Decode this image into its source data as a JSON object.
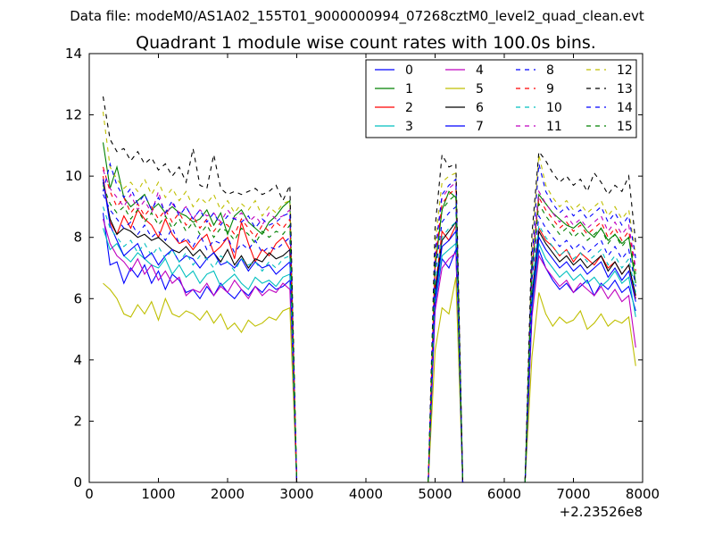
{
  "figure": {
    "suptitle": "Data file: modeM0/AS1A02_155T01_9000000994_07268cztM0_level2_quad_clean.evt"
  },
  "chart_data": {
    "type": "line",
    "title": "Quadrant 1 module wise count rates with 100.0s bins.",
    "xlabel": "",
    "ylabel": "",
    "x_offset_label": "+2.23526e8",
    "xlim": [
      0,
      8000
    ],
    "ylim": [
      0,
      14
    ],
    "xticks": [
      0,
      1000,
      2000,
      3000,
      4000,
      5000,
      6000,
      7000,
      8000
    ],
    "yticks": [
      0,
      2,
      4,
      6,
      8,
      10,
      12,
      14
    ],
    "legend_position": "top-right",
    "legend_columns": 4,
    "x": [
      200,
      300,
      400,
      500,
      600,
      700,
      800,
      900,
      1000,
      1100,
      1200,
      1300,
      1400,
      1500,
      1600,
      1700,
      1800,
      1900,
      2000,
      2100,
      2200,
      2300,
      2400,
      2500,
      2600,
      2700,
      2800,
      2900,
      3000,
      4900,
      5000,
      5100,
      5200,
      5300,
      5400,
      5500,
      6300,
      6400,
      6500,
      6600,
      6700,
      6800,
      6900,
      7000,
      7100,
      7200,
      7300,
      7400,
      7500,
      7600,
      7700,
      7800,
      7900
    ],
    "series": [
      {
        "name": "0",
        "color": "#0000ff",
        "dash": "solid",
        "values": [
          8.8,
          7.1,
          7.2,
          6.5,
          7.0,
          6.7,
          7.1,
          6.5,
          6.9,
          6.3,
          6.8,
          6.6,
          6.2,
          6.3,
          6.0,
          6.4,
          6.1,
          6.5,
          6.2,
          6.0,
          6.3,
          6.1,
          6.4,
          6.2,
          6.5,
          6.3,
          6.4,
          6.6,
          0,
          0,
          5.8,
          7.3,
          7.0,
          7.6,
          0,
          0,
          0,
          5.5,
          7.6,
          7.0,
          6.6,
          6.3,
          6.5,
          6.2,
          6.4,
          6.6,
          6.1,
          6.5,
          6.3,
          6.6,
          6.2,
          6.4,
          5.6
        ]
      },
      {
        "name": "1",
        "color": "#008000",
        "dash": "solid",
        "values": [
          11.1,
          9.6,
          10.3,
          9.3,
          9.0,
          9.2,
          9.4,
          8.9,
          9.1,
          8.8,
          9.0,
          8.8,
          8.7,
          8.5,
          8.6,
          8.9,
          8.4,
          8.8,
          8.1,
          8.7,
          8.9,
          8.5,
          8.3,
          8.1,
          8.5,
          8.7,
          9.0,
          9.2,
          0,
          0,
          7.0,
          8.9,
          9.5,
          9.3,
          0,
          0,
          0,
          6.9,
          9.4,
          9.1,
          8.8,
          8.6,
          8.4,
          8.3,
          8.5,
          8.2,
          8.0,
          8.3,
          7.9,
          8.1,
          7.8,
          8.0,
          6.5
        ]
      },
      {
        "name": "2",
        "color": "#ff0000",
        "dash": "solid",
        "values": [
          10.0,
          8.5,
          8.1,
          8.7,
          8.3,
          8.9,
          8.6,
          8.4,
          8.0,
          8.6,
          8.1,
          7.8,
          7.9,
          7.6,
          7.9,
          8.1,
          7.5,
          7.7,
          8.0,
          7.3,
          8.5,
          7.8,
          7.2,
          7.6,
          7.4,
          7.8,
          8.0,
          7.6,
          0,
          0,
          6.3,
          8.2,
          7.9,
          8.4,
          0,
          0,
          0,
          6.1,
          8.3,
          7.9,
          7.7,
          7.4,
          7.6,
          7.2,
          7.5,
          7.3,
          7.1,
          7.4,
          7.0,
          7.2,
          6.8,
          7.1,
          6.0
        ]
      },
      {
        "name": "3",
        "color": "#00bfbf",
        "dash": "solid",
        "values": [
          8.3,
          7.6,
          7.8,
          7.4,
          7.2,
          7.5,
          7.3,
          7.1,
          7.0,
          7.3,
          6.8,
          7.1,
          6.7,
          6.9,
          6.5,
          6.8,
          6.9,
          6.4,
          6.6,
          6.8,
          6.5,
          6.3,
          6.7,
          6.5,
          6.6,
          6.4,
          6.7,
          6.8,
          0,
          0,
          5.9,
          7.4,
          7.6,
          7.8,
          0,
          0,
          0,
          5.6,
          7.8,
          7.3,
          7.0,
          6.7,
          6.9,
          6.6,
          6.8,
          6.5,
          6.7,
          6.4,
          6.6,
          6.9,
          6.5,
          6.7,
          5.4
        ]
      },
      {
        "name": "4",
        "color": "#bf00bf",
        "dash": "solid",
        "values": [
          8.6,
          7.8,
          7.4,
          7.2,
          6.9,
          7.3,
          6.8,
          7.1,
          6.6,
          6.9,
          6.5,
          6.7,
          6.1,
          6.3,
          6.2,
          6.5,
          6.1,
          6.4,
          6.2,
          6.6,
          6.3,
          6.0,
          6.4,
          6.1,
          6.3,
          6.2,
          6.5,
          6.3,
          0,
          0,
          5.6,
          7.0,
          7.3,
          7.5,
          0,
          0,
          0,
          5.4,
          7.4,
          7.0,
          6.7,
          6.4,
          6.6,
          6.2,
          6.5,
          6.3,
          6.1,
          6.4,
          6.0,
          6.3,
          5.9,
          6.1,
          4.4
        ]
      },
      {
        "name": "5",
        "color": "#bfbf00",
        "dash": "solid",
        "values": [
          6.5,
          6.3,
          6.0,
          5.5,
          5.4,
          5.8,
          5.5,
          5.9,
          5.3,
          6.0,
          5.5,
          5.4,
          5.6,
          5.5,
          5.3,
          5.6,
          5.2,
          5.5,
          5.0,
          5.2,
          4.9,
          5.3,
          5.1,
          5.2,
          5.4,
          5.3,
          5.6,
          5.7,
          0,
          0,
          4.3,
          5.7,
          5.5,
          6.7,
          0,
          0,
          0,
          4.1,
          6.2,
          5.5,
          5.1,
          5.4,
          5.2,
          5.3,
          5.6,
          5.0,
          5.2,
          5.5,
          5.1,
          5.3,
          5.2,
          5.4,
          3.8
        ]
      },
      {
        "name": "6",
        "color": "#000000",
        "dash": "solid",
        "values": [
          9.8,
          8.6,
          8.1,
          8.3,
          8.2,
          8.0,
          8.1,
          7.9,
          8.0,
          7.8,
          7.6,
          7.5,
          7.7,
          7.4,
          7.6,
          7.3,
          7.5,
          7.2,
          7.6,
          7.1,
          7.4,
          7.0,
          7.3,
          7.2,
          7.5,
          7.3,
          7.4,
          7.6,
          0,
          0,
          6.2,
          7.9,
          8.2,
          8.5,
          0,
          0,
          0,
          6.0,
          8.2,
          7.8,
          7.5,
          7.2,
          7.4,
          7.1,
          7.3,
          7.0,
          7.2,
          7.4,
          6.9,
          7.2,
          6.8,
          7.1,
          6.1
        ]
      },
      {
        "name": "7",
        "color": "#0000ff",
        "dash": "solid",
        "values": [
          9.9,
          8.4,
          7.9,
          7.4,
          7.6,
          7.8,
          7.3,
          7.5,
          7.1,
          7.4,
          7.6,
          7.2,
          7.4,
          7.3,
          7.0,
          7.3,
          7.5,
          7.1,
          7.2,
          7.0,
          7.3,
          6.9,
          7.2,
          7.0,
          7.1,
          6.8,
          7.0,
          7.2,
          0,
          0,
          6.0,
          7.7,
          7.9,
          8.2,
          0,
          0,
          0,
          5.8,
          8.0,
          7.6,
          7.3,
          7.0,
          7.2,
          6.9,
          7.1,
          6.8,
          7.0,
          7.2,
          6.7,
          7.0,
          6.6,
          6.9,
          5.9
        ]
      },
      {
        "name": "8",
        "color": "#0000ff",
        "dash": "dashed",
        "values": [
          9.4,
          8.9,
          8.6,
          8.3,
          8.5,
          8.1,
          8.4,
          8.0,
          8.2,
          7.9,
          8.3,
          7.8,
          8.0,
          7.7,
          8.1,
          7.6,
          7.9,
          7.8,
          8.0,
          7.5,
          7.8,
          7.6,
          7.9,
          7.5,
          7.7,
          7.6,
          7.8,
          8.0,
          0,
          0,
          6.8,
          8.5,
          8.8,
          9.0,
          0,
          0,
          0,
          6.6,
          8.7,
          8.3,
          8.0,
          7.7,
          7.9,
          7.6,
          7.8,
          7.5,
          7.7,
          7.9,
          7.4,
          7.7,
          7.3,
          7.6,
          6.4
        ]
      },
      {
        "name": "9",
        "color": "#ff0000",
        "dash": "dashed",
        "values": [
          10.3,
          9.5,
          9.0,
          9.3,
          8.8,
          9.1,
          8.7,
          9.0,
          8.6,
          8.9,
          8.5,
          8.8,
          8.4,
          8.7,
          8.3,
          8.6,
          8.2,
          8.5,
          8.4,
          8.1,
          8.6,
          8.3,
          8.0,
          8.4,
          8.2,
          8.5,
          8.3,
          8.6,
          0,
          0,
          7.2,
          9.1,
          9.4,
          9.6,
          0,
          0,
          0,
          7.0,
          9.3,
          8.9,
          8.6,
          8.3,
          8.5,
          8.2,
          8.4,
          8.1,
          8.3,
          8.5,
          8.0,
          8.3,
          7.9,
          8.2,
          6.9
        ]
      },
      {
        "name": "10",
        "color": "#00bfbf",
        "dash": "dashed",
        "values": [
          9.0,
          8.3,
          8.0,
          7.7,
          7.9,
          7.5,
          7.8,
          7.4,
          7.7,
          7.3,
          7.6,
          7.2,
          7.5,
          7.1,
          7.4,
          7.3,
          7.0,
          7.4,
          7.2,
          6.9,
          7.3,
          7.1,
          7.2,
          6.9,
          7.2,
          7.0,
          7.3,
          7.4,
          0,
          0,
          6.5,
          8.0,
          8.3,
          8.5,
          0,
          0,
          0,
          6.3,
          8.4,
          8.0,
          7.7,
          7.4,
          7.6,
          7.3,
          7.5,
          7.2,
          7.4,
          7.6,
          7.1,
          7.4,
          7.0,
          7.3,
          6.2
        ]
      },
      {
        "name": "11",
        "color": "#bf00bf",
        "dash": "dashed",
        "values": [
          10.2,
          9.6,
          9.3,
          9.0,
          9.4,
          8.9,
          9.2,
          8.8,
          9.5,
          8.7,
          9.1,
          8.8,
          9.0,
          8.6,
          8.9,
          8.7,
          8.8,
          8.5,
          8.9,
          8.6,
          8.8,
          8.5,
          8.7,
          8.4,
          8.8,
          8.6,
          8.7,
          8.9,
          0,
          0,
          7.4,
          9.3,
          9.6,
          9.8,
          0,
          0,
          0,
          7.2,
          9.5,
          9.1,
          8.8,
          8.5,
          8.7,
          8.4,
          8.6,
          8.3,
          8.5,
          8.7,
          8.2,
          8.5,
          8.1,
          8.4,
          7.0
        ]
      },
      {
        "name": "12",
        "color": "#bfbf00",
        "dash": "dashed",
        "values": [
          12.1,
          10.3,
          9.9,
          9.6,
          9.8,
          9.5,
          9.9,
          9.4,
          9.8,
          9.3,
          9.6,
          9.2,
          9.5,
          9.0,
          9.3,
          9.1,
          9.4,
          8.9,
          9.2,
          8.8,
          9.1,
          8.9,
          9.2,
          8.7,
          9.0,
          8.8,
          9.1,
          9.2,
          0,
          0,
          7.8,
          9.8,
          10.0,
          10.1,
          0,
          0,
          0,
          7.6,
          10.7,
          9.7,
          9.3,
          9.0,
          9.2,
          8.9,
          9.1,
          8.8,
          9.0,
          9.2,
          8.7,
          9.0,
          8.6,
          8.9,
          7.4
        ]
      },
      {
        "name": "13",
        "color": "#000000",
        "dash": "dashed",
        "values": [
          12.6,
          11.2,
          10.8,
          10.9,
          10.5,
          10.8,
          10.4,
          10.6,
          10.2,
          10.4,
          10.0,
          10.3,
          9.8,
          10.9,
          9.7,
          9.6,
          10.7,
          9.6,
          9.4,
          9.5,
          9.4,
          9.5,
          9.6,
          9.4,
          9.5,
          9.7,
          9.2,
          9.7,
          0,
          0,
          8.3,
          10.7,
          10.3,
          10.4,
          0,
          0,
          0,
          8.1,
          10.8,
          10.5,
          10.1,
          9.8,
          10.0,
          9.7,
          9.9,
          9.5,
          10.1,
          9.8,
          9.4,
          9.7,
          9.5,
          10.0,
          7.8
        ]
      },
      {
        "name": "14",
        "color": "#0000ff",
        "dash": "dashed",
        "values": [
          9.5,
          10.4,
          9.7,
          9.3,
          9.6,
          9.1,
          9.4,
          8.9,
          9.3,
          8.8,
          9.2,
          8.7,
          9.0,
          8.6,
          8.9,
          8.5,
          8.8,
          8.4,
          8.7,
          8.6,
          8.5,
          8.7,
          8.3,
          8.6,
          8.4,
          8.5,
          8.7,
          8.8,
          0,
          0,
          7.5,
          9.4,
          9.7,
          9.9,
          0,
          0,
          0,
          7.3,
          10.4,
          9.5,
          9.1,
          8.8,
          9.0,
          8.7,
          8.9,
          8.6,
          8.8,
          9.0,
          8.5,
          8.8,
          8.4,
          8.7,
          7.3
        ]
      },
      {
        "name": "15",
        "color": "#008000",
        "dash": "dashed",
        "values": [
          9.7,
          9.1,
          8.8,
          9.0,
          8.6,
          8.9,
          8.5,
          8.8,
          8.4,
          8.7,
          8.3,
          8.6,
          8.2,
          8.5,
          8.1,
          8.4,
          8.0,
          8.3,
          8.2,
          7.9,
          8.3,
          8.1,
          7.8,
          8.2,
          8.0,
          8.2,
          8.1,
          8.4,
          0,
          0,
          7.1,
          8.9,
          9.2,
          9.4,
          0,
          0,
          0,
          6.9,
          9.1,
          8.7,
          8.4,
          8.1,
          8.3,
          8.0,
          8.2,
          7.9,
          8.1,
          8.3,
          7.8,
          8.1,
          7.7,
          8.0,
          6.8
        ]
      }
    ]
  }
}
